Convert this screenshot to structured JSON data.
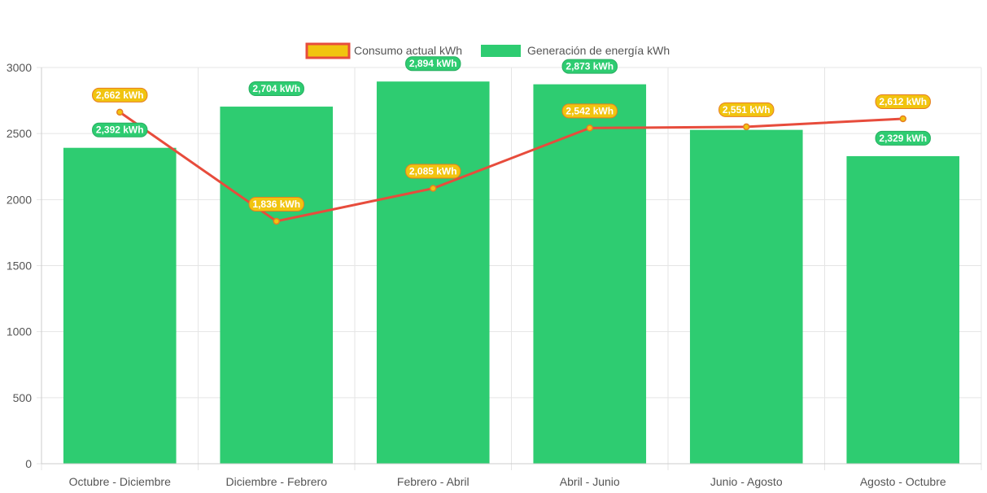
{
  "chart_data": {
    "type": "bar",
    "categories": [
      "Octubre - Diciembre",
      "Diciembre - Febrero",
      "Febrero - Abril",
      "Abril - Junio",
      "Junio - Agosto",
      "Agosto - Octubre"
    ],
    "series": [
      {
        "name": "Consumo actual kWh",
        "type": "line",
        "values": [
          2662,
          1836,
          2085,
          2542,
          2551,
          2612
        ],
        "labels": [
          "2,662 kWh",
          "1,836 kWh",
          "2,085 kWh",
          "2,542 kWh",
          "2,551 kWh",
          "2,612 kWh"
        ],
        "color": "#e74c3c",
        "label_color": "#f1c40f",
        "label_border": "#e67e22"
      },
      {
        "name": "Generación de energía kWh",
        "type": "bar",
        "values": [
          2392,
          2704,
          2894,
          2873,
          2528,
          2329
        ],
        "labels": [
          "2,392 kWh",
          "2,704 kWh",
          "2,894 kWh",
          "2,873 kWh",
          "",
          "2,329 kWh"
        ],
        "color": "#2ecc71",
        "label_color": "#2ecc71",
        "label_border": "#27ae60"
      }
    ],
    "ylim": [
      0,
      3000
    ],
    "yticks": [
      "0",
      "500",
      "1000",
      "1500",
      "2000",
      "2500",
      "3000"
    ],
    "grid": true,
    "legend": "top"
  }
}
